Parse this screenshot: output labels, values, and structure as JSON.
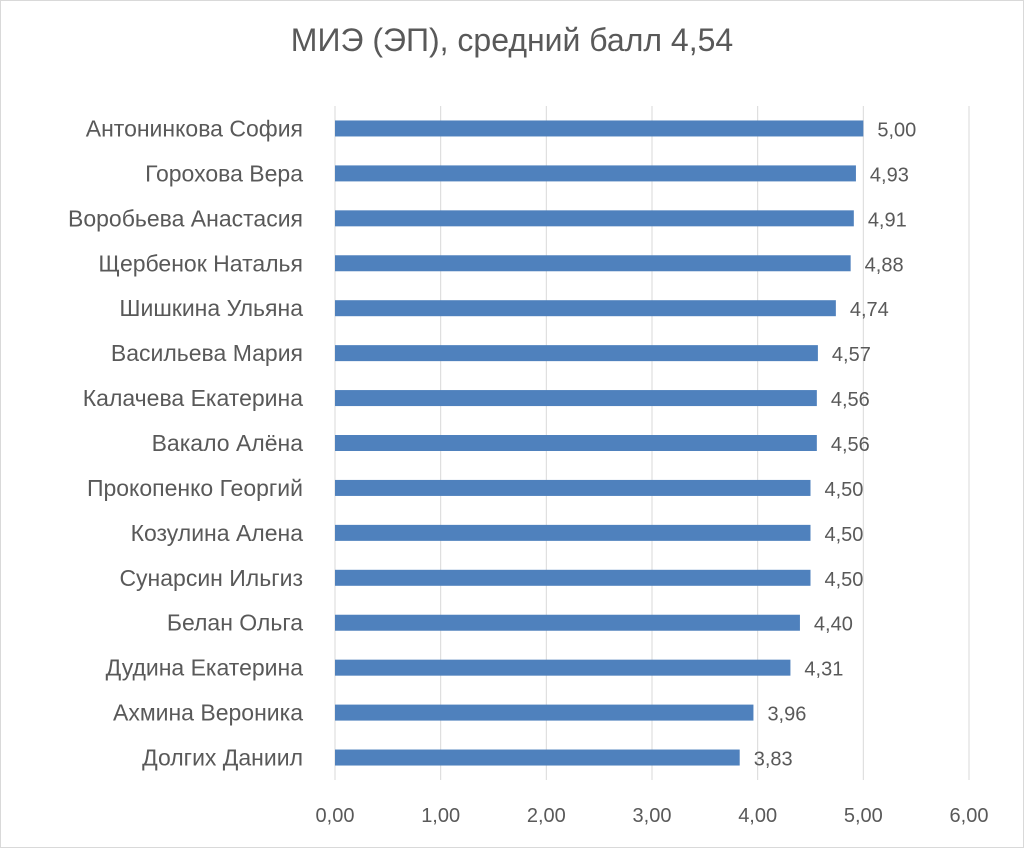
{
  "chart_data": {
    "type": "bar",
    "orientation": "horizontal",
    "title": "МИЭ (ЭП), средний балл 4,54",
    "categories": [
      "Антонинкова София",
      "Горохова Вера",
      "Воробьева Анастасия",
      "Щербенок Наталья",
      "Шишкина Ульяна",
      "Васильева Мария",
      "Калачева Екатерина",
      "Вакало Алёна",
      "Прокопенко Георгий",
      "Козулина Алена",
      "Сунарсин Ильгиз",
      "Белан Ольга",
      "Дудина Екатерина",
      "Ахмина Вероника",
      "Долгих Даниил"
    ],
    "values": [
      5.0,
      4.93,
      4.91,
      4.88,
      4.74,
      4.57,
      4.56,
      4.56,
      4.5,
      4.5,
      4.5,
      4.4,
      4.31,
      3.96,
      3.83
    ],
    "value_labels": [
      "5,00",
      "4,93",
      "4,91",
      "4,88",
      "4,74",
      "4,57",
      "4,56",
      "4,56",
      "4,50",
      "4,50",
      "4,50",
      "4,40",
      "4,31",
      "3,96",
      "3,83"
    ],
    "xlim": [
      0,
      6
    ],
    "x_ticks": [
      0,
      1,
      2,
      3,
      4,
      5,
      6
    ],
    "x_tick_labels": [
      "0,00",
      "1,00",
      "2,00",
      "3,00",
      "4,00",
      "5,00",
      "6,00"
    ],
    "grid": "vertical",
    "legend": "none",
    "bar_color": "#4f81bd",
    "grid_color": "#d9d9d9",
    "text_color": "#595959"
  }
}
